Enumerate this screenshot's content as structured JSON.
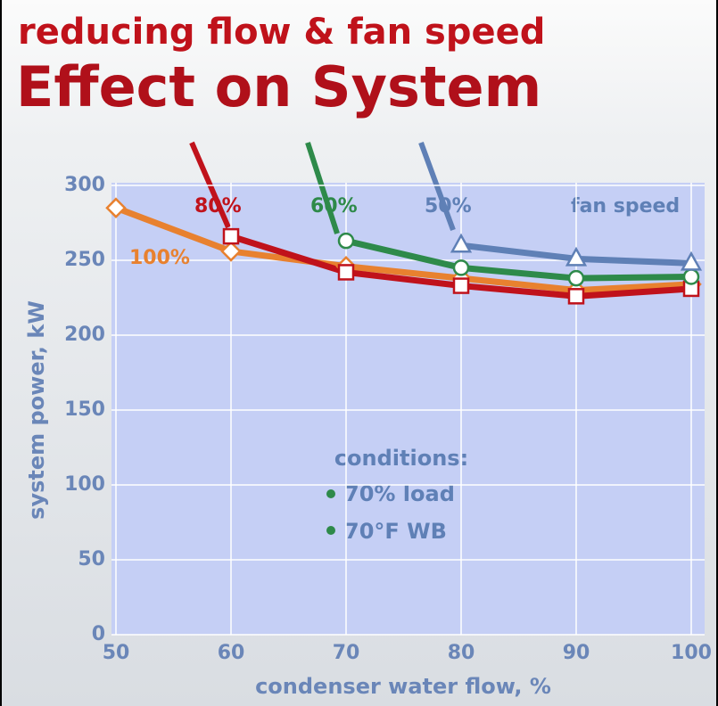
{
  "chart_data": {
    "type": "line",
    "subtitle": "reducing flow & fan speed",
    "title": "Effect on System",
    "x_label": "condenser water flow, %",
    "y_label": "system power, kW",
    "x": [
      50,
      60,
      70,
      80,
      90,
      100
    ],
    "series": [
      {
        "name": "100%",
        "color": "#e8812f",
        "marker": "diamond",
        "values": [
          285,
          256,
          246,
          238,
          230,
          234
        ]
      },
      {
        "name": "80%",
        "color": "#c0121b",
        "marker": "square",
        "values": [
          null,
          266,
          242,
          233,
          226,
          231
        ]
      },
      {
        "name": "60%",
        "color": "#2e8a4a",
        "marker": "circle",
        "values": [
          null,
          null,
          263,
          245,
          238,
          239
        ]
      },
      {
        "name": "50%",
        "color": "#5f80b6",
        "marker": "triangle",
        "values": [
          null,
          null,
          null,
          260,
          251,
          248
        ]
      }
    ],
    "legend_title": "fan speed",
    "notes": [
      "conditions:",
      "70% load",
      "70°F WB"
    ],
    "xlim": [
      50,
      100
    ],
    "xticks": [
      50,
      60,
      70,
      80,
      90,
      100
    ],
    "ylim": [
      0,
      300
    ],
    "yticks": [
      0,
      50,
      100,
      150,
      200,
      250,
      300
    ],
    "grid": true
  }
}
